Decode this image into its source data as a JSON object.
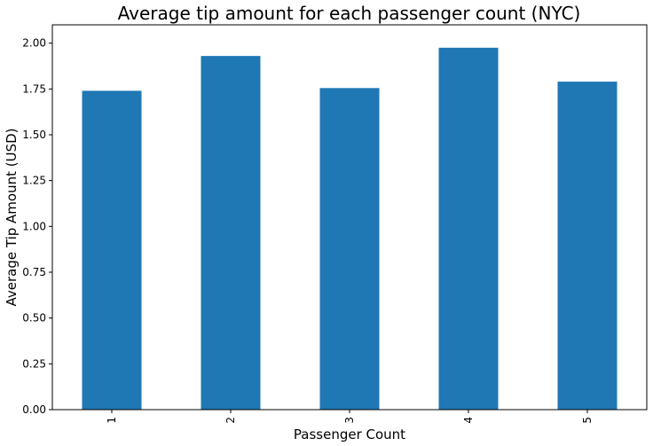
{
  "chart_data": {
    "type": "bar",
    "title": "Average tip amount for each passenger count (NYC)",
    "xlabel": "Passenger Count",
    "ylabel": "Average Tip Amount (USD)",
    "categories": [
      "1",
      "2",
      "3",
      "4",
      "5"
    ],
    "values": [
      1.74,
      1.93,
      1.755,
      1.975,
      1.79
    ],
    "ylim": [
      0,
      2.1
    ],
    "yticks": [
      "0.00",
      "0.25",
      "0.50",
      "0.75",
      "1.00",
      "1.25",
      "1.50",
      "1.75",
      "2.00"
    ],
    "grid": false,
    "legend": "none",
    "bar_color": "#1f77b4"
  }
}
